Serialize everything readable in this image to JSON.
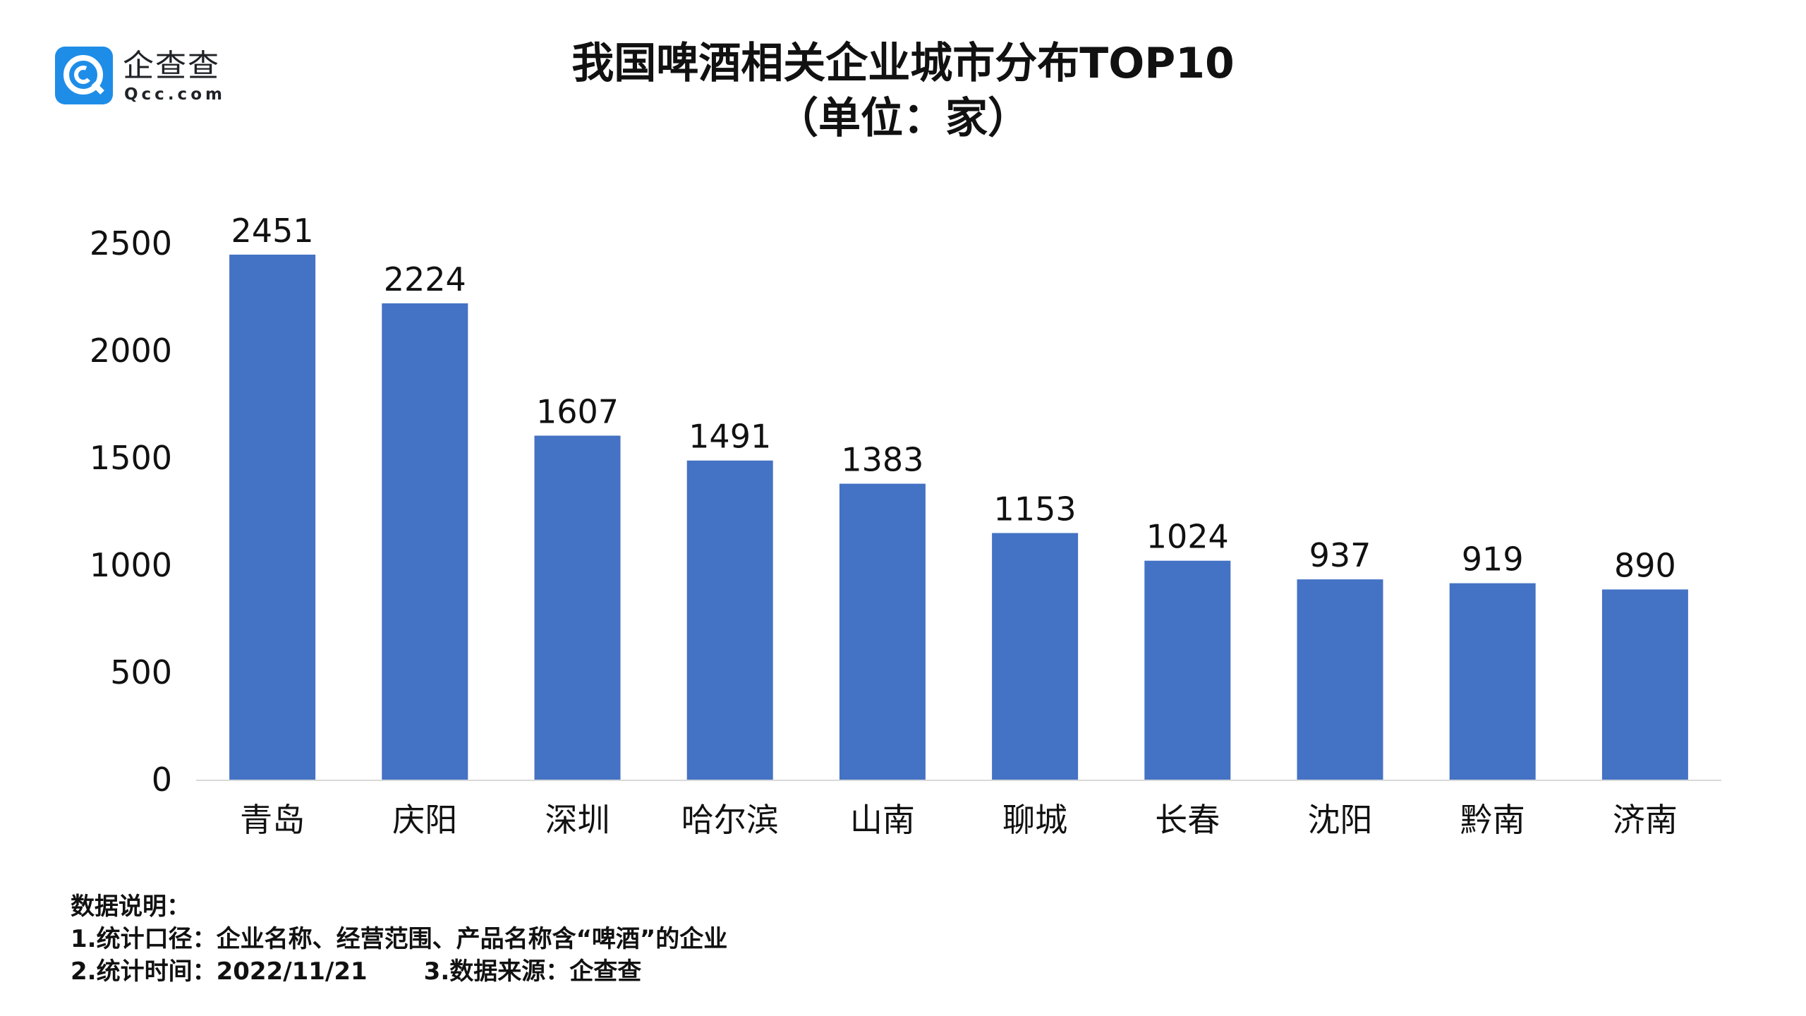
{
  "logo": {
    "name": "企查查",
    "domain": "Qcc.com",
    "color": "#1e8de8"
  },
  "title": "我国啤酒相关企业城市分布TOP10",
  "subtitle": "（单位：家）",
  "chart_data": {
    "type": "bar",
    "categories": [
      "青岛",
      "庆阳",
      "深圳",
      "哈尔滨",
      "山南",
      "聊城",
      "长春",
      "沈阳",
      "黔南",
      "济南"
    ],
    "values": [
      2451,
      2224,
      1607,
      1491,
      1383,
      1153,
      1024,
      937,
      919,
      890
    ],
    "data_labels": [
      "2451",
      "2224",
      "1607",
      "1491",
      "1383",
      "1153",
      "1024",
      "937",
      "919",
      "890"
    ],
    "yticks": [
      0,
      500,
      1000,
      1500,
      2000,
      2500
    ],
    "ylim": [
      0,
      2500
    ],
    "grid": false,
    "bar_color": "#4472c4",
    "axis_color": "#d9d9d9"
  },
  "notes": {
    "heading": "数据说明：",
    "line1": "1.统计口径：企业名称、经营范围、产品名称含“啤酒”的企业",
    "line2a": "2.统计时间：2022/11/21",
    "line2b": "3.数据来源：企查查"
  }
}
